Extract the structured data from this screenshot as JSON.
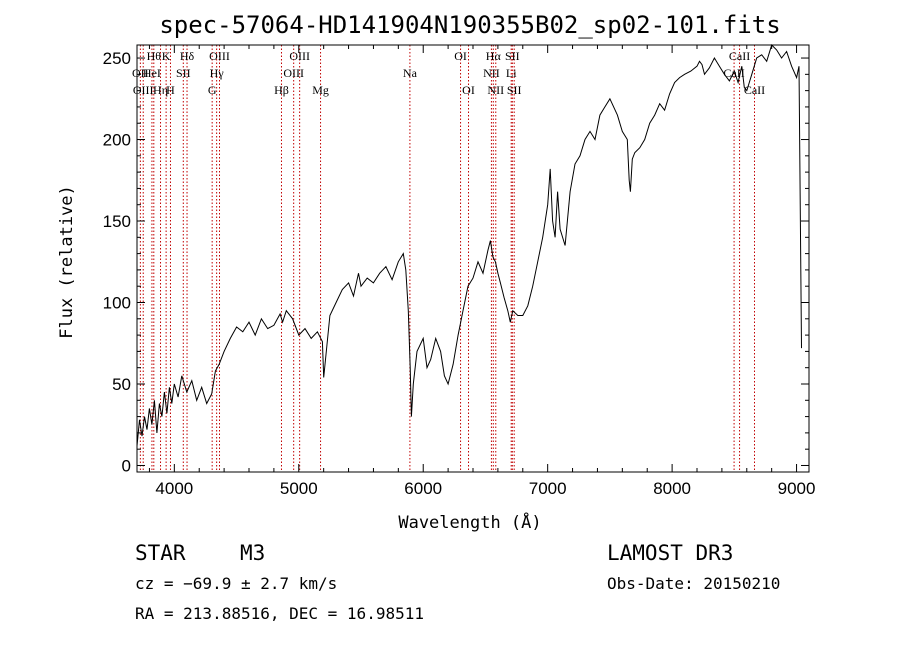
{
  "chart_data": {
    "type": "line",
    "title": "spec-57064-HD141904N190355B02_sp02-101.fits",
    "xlabel": "Wavelength (Å)",
    "ylabel": "Flux (relative)",
    "xlim": [
      3700,
      9100
    ],
    "ylim": [
      -4,
      258
    ],
    "xticks": [
      4000,
      5000,
      6000,
      7000,
      8000,
      9000
    ],
    "xtick_labels": [
      "4000",
      "5000",
      "6000",
      "7000",
      "8000",
      "9000"
    ],
    "yticks": [
      0,
      50,
      100,
      150,
      200,
      250
    ],
    "ytick_labels": [
      "0",
      "50",
      "100",
      "150",
      "200",
      "250"
    ],
    "grid": false,
    "series": [
      {
        "name": "flux",
        "color": "#000000",
        "x": [
          3700,
          3720,
          3740,
          3760,
          3780,
          3800,
          3820,
          3840,
          3860,
          3880,
          3900,
          3920,
          3940,
          3960,
          3980,
          4000,
          4030,
          4060,
          4100,
          4140,
          4180,
          4220,
          4260,
          4300,
          4330,
          4360,
          4400,
          4450,
          4500,
          4550,
          4600,
          4650,
          4700,
          4750,
          4800,
          4850,
          4870,
          4900,
          4950,
          5000,
          5050,
          5100,
          5150,
          5190,
          5200,
          5250,
          5300,
          5350,
          5400,
          5440,
          5480,
          5500,
          5550,
          5600,
          5650,
          5700,
          5750,
          5800,
          5840,
          5860,
          5880,
          5895,
          5905,
          5920,
          5950,
          6000,
          6030,
          6060,
          6100,
          6140,
          6170,
          6200,
          6240,
          6280,
          6320,
          6360,
          6400,
          6440,
          6480,
          6520,
          6540,
          6560,
          6580,
          6600,
          6620,
          6650,
          6680,
          6700,
          6720,
          6760,
          6800,
          6840,
          6880,
          6920,
          6960,
          7000,
          7020,
          7040,
          7060,
          7080,
          7100,
          7140,
          7180,
          7220,
          7260,
          7300,
          7340,
          7380,
          7420,
          7460,
          7500,
          7560,
          7600,
          7640,
          7655,
          7665,
          7680,
          7700,
          7740,
          7780,
          7820,
          7860,
          7900,
          7940,
          7980,
          8020,
          8060,
          8100,
          8150,
          8200,
          8220,
          8240,
          8260,
          8300,
          8340,
          8380,
          8420,
          8460,
          8500,
          8530,
          8560,
          8580,
          8600,
          8640,
          8680,
          8720,
          8760,
          8800,
          8840,
          8880,
          8920,
          8960,
          9000,
          9020,
          9040
        ],
        "y": [
          12,
          28,
          18,
          30,
          22,
          35,
          25,
          40,
          20,
          38,
          30,
          45,
          32,
          48,
          38,
          50,
          42,
          55,
          45,
          52,
          40,
          48,
          38,
          44,
          58,
          62,
          70,
          78,
          85,
          82,
          88,
          80,
          90,
          84,
          86,
          93,
          88,
          95,
          90,
          80,
          84,
          78,
          82,
          76,
          54,
          92,
          100,
          108,
          112,
          104,
          118,
          110,
          115,
          112,
          118,
          122,
          114,
          125,
          130,
          120,
          95,
          60,
          30,
          50,
          70,
          78,
          60,
          65,
          78,
          70,
          55,
          50,
          62,
          80,
          95,
          110,
          115,
          125,
          118,
          132,
          138,
          128,
          125,
          118,
          112,
          103,
          95,
          88,
          95,
          92,
          92,
          98,
          110,
          125,
          140,
          160,
          182,
          150,
          140,
          168,
          145,
          135,
          168,
          185,
          190,
          200,
          205,
          200,
          215,
          220,
          225,
          215,
          205,
          200,
          175,
          168,
          188,
          192,
          195,
          200,
          210,
          215,
          222,
          218,
          228,
          235,
          238,
          240,
          242,
          245,
          248,
          246,
          240,
          244,
          250,
          245,
          240,
          236,
          242,
          235,
          245,
          232,
          230,
          240,
          250,
          252,
          248,
          258,
          255,
          250,
          254,
          245,
          238,
          245,
          72
        ]
      }
    ],
    "line_markers": [
      {
        "wavelength": 3727,
        "label": "OII",
        "row": 1
      },
      {
        "wavelength": 3750,
        "label": "OIII",
        "row": 2
      },
      {
        "wavelength": 3820,
        "label": "HeI",
        "row": 1
      },
      {
        "wavelength": 3835,
        "label": "Hθ",
        "row": 0
      },
      {
        "wavelength": 3889,
        "label": "Hη",
        "row": 2
      },
      {
        "wavelength": 3934,
        "label": "K",
        "row": 0
      },
      {
        "wavelength": 3969,
        "label": "H",
        "row": 2
      },
      {
        "wavelength": 4072,
        "label": "SII",
        "row": 1
      },
      {
        "wavelength": 4102,
        "label": "Hδ",
        "row": 0
      },
      {
        "wavelength": 4304,
        "label": "G",
        "row": 2
      },
      {
        "wavelength": 4340,
        "label": "Hγ",
        "row": 1
      },
      {
        "wavelength": 4363,
        "label": "OIII",
        "row": 0
      },
      {
        "wavelength": 4861,
        "label": "Hβ",
        "row": 2
      },
      {
        "wavelength": 4959,
        "label": "OIII",
        "row": 1
      },
      {
        "wavelength": 5007,
        "label": "OIII",
        "row": 0
      },
      {
        "wavelength": 5175,
        "label": "Mg",
        "row": 2
      },
      {
        "wavelength": 5893,
        "label": "Na",
        "row": 1
      },
      {
        "wavelength": 6300,
        "label": "OI",
        "row": 0
      },
      {
        "wavelength": 6364,
        "label": "OI",
        "row": 2
      },
      {
        "wavelength": 6548,
        "label": "NII",
        "row": 1
      },
      {
        "wavelength": 6563,
        "label": "Hα",
        "row": 0
      },
      {
        "wavelength": 6583,
        "label": "NII",
        "row": 2
      },
      {
        "wavelength": 6707,
        "label": "Li",
        "row": 1
      },
      {
        "wavelength": 6716,
        "label": "SII",
        "row": 0
      },
      {
        "wavelength": 6731,
        "label": "SII",
        "row": 2
      },
      {
        "wavelength": 8498,
        "label": "CaII",
        "row": 1
      },
      {
        "wavelength": 8542,
        "label": "CaII",
        "row": 0
      },
      {
        "wavelength": 8662,
        "label": "CaII",
        "row": 2
      }
    ],
    "line_marker_color": "#c00000"
  },
  "info": {
    "class": "STAR",
    "subclass": "M3",
    "survey": "LAMOST DR3",
    "redshift": "cz = −69.9 ± 2.7 km/s",
    "obs_date": "Obs-Date: 20150210",
    "coords": "RA = 213.88516, DEC =  16.98511"
  }
}
